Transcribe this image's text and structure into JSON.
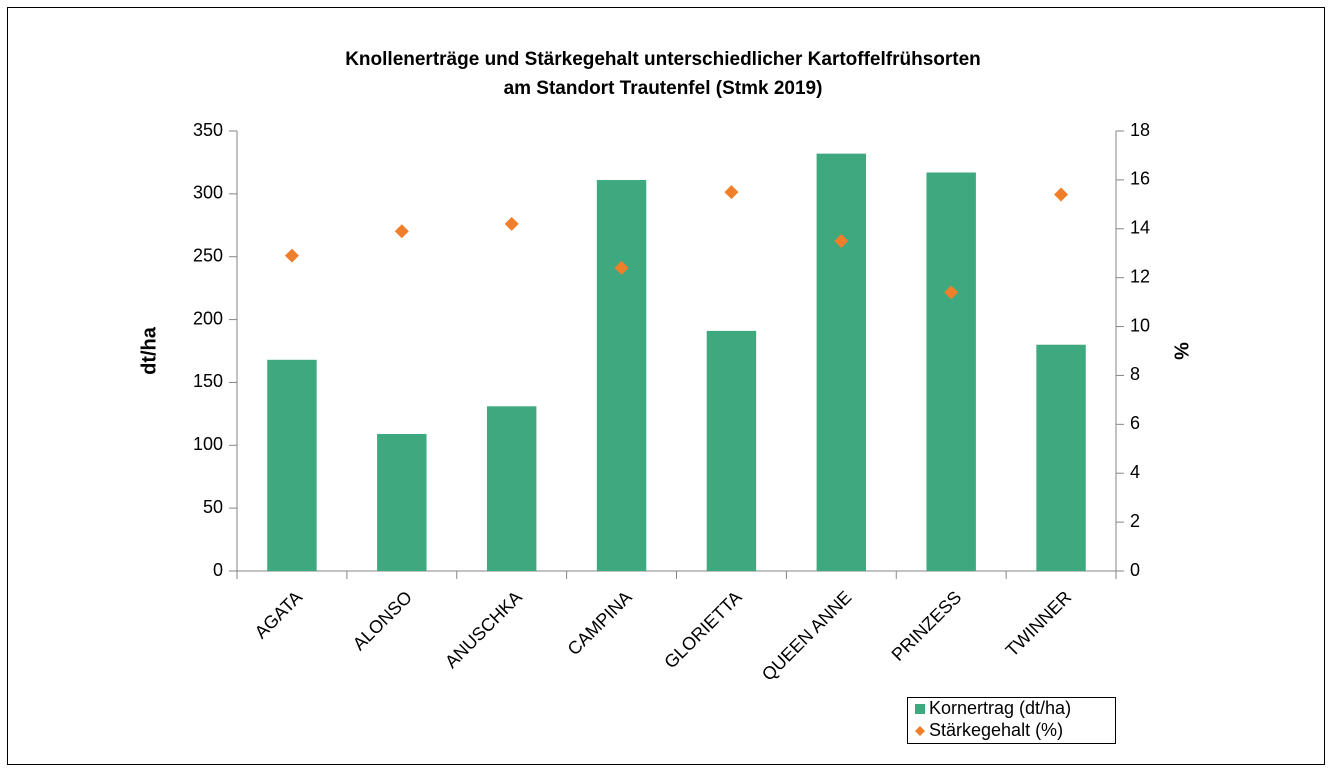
{
  "chart_data": {
    "type": "bar",
    "title": [
      "Knollenerträge und Stärkegehalt unterschiedlicher Kartoffelfrühsorten",
      "am Standort Trautenfel (Stmk 2019)"
    ],
    "ylabel": "dt/ha",
    "y2label": "%",
    "categories": [
      "AGATA",
      "ALONSO",
      "ANUSCHKA",
      "CAMPINA",
      "GLORIETTA",
      "QUEEN ANNE",
      "PRINZESS",
      "TWINNER"
    ],
    "series": [
      {
        "name": "Kornertrag (dt/ha)",
        "type": "bar",
        "color": "#3ea97e",
        "values": [
          168,
          109,
          131,
          311,
          191,
          332,
          317,
          180
        ]
      },
      {
        "name": "Stärkegehalt (%)",
        "type": "scatter",
        "axis": "y2",
        "color": "#f07f2b",
        "values": [
          12.9,
          13.9,
          14.2,
          12.4,
          15.5,
          13.5,
          11.4,
          15.4
        ]
      }
    ],
    "ylim": [
      0,
      350
    ],
    "yticks": [
      0,
      50,
      100,
      150,
      200,
      250,
      300,
      350
    ],
    "y2lim": [
      0,
      18
    ],
    "y2ticks": [
      0,
      2,
      4,
      6,
      8,
      10,
      12,
      14,
      16,
      18
    ],
    "grid": false,
    "legend": "lower right"
  }
}
